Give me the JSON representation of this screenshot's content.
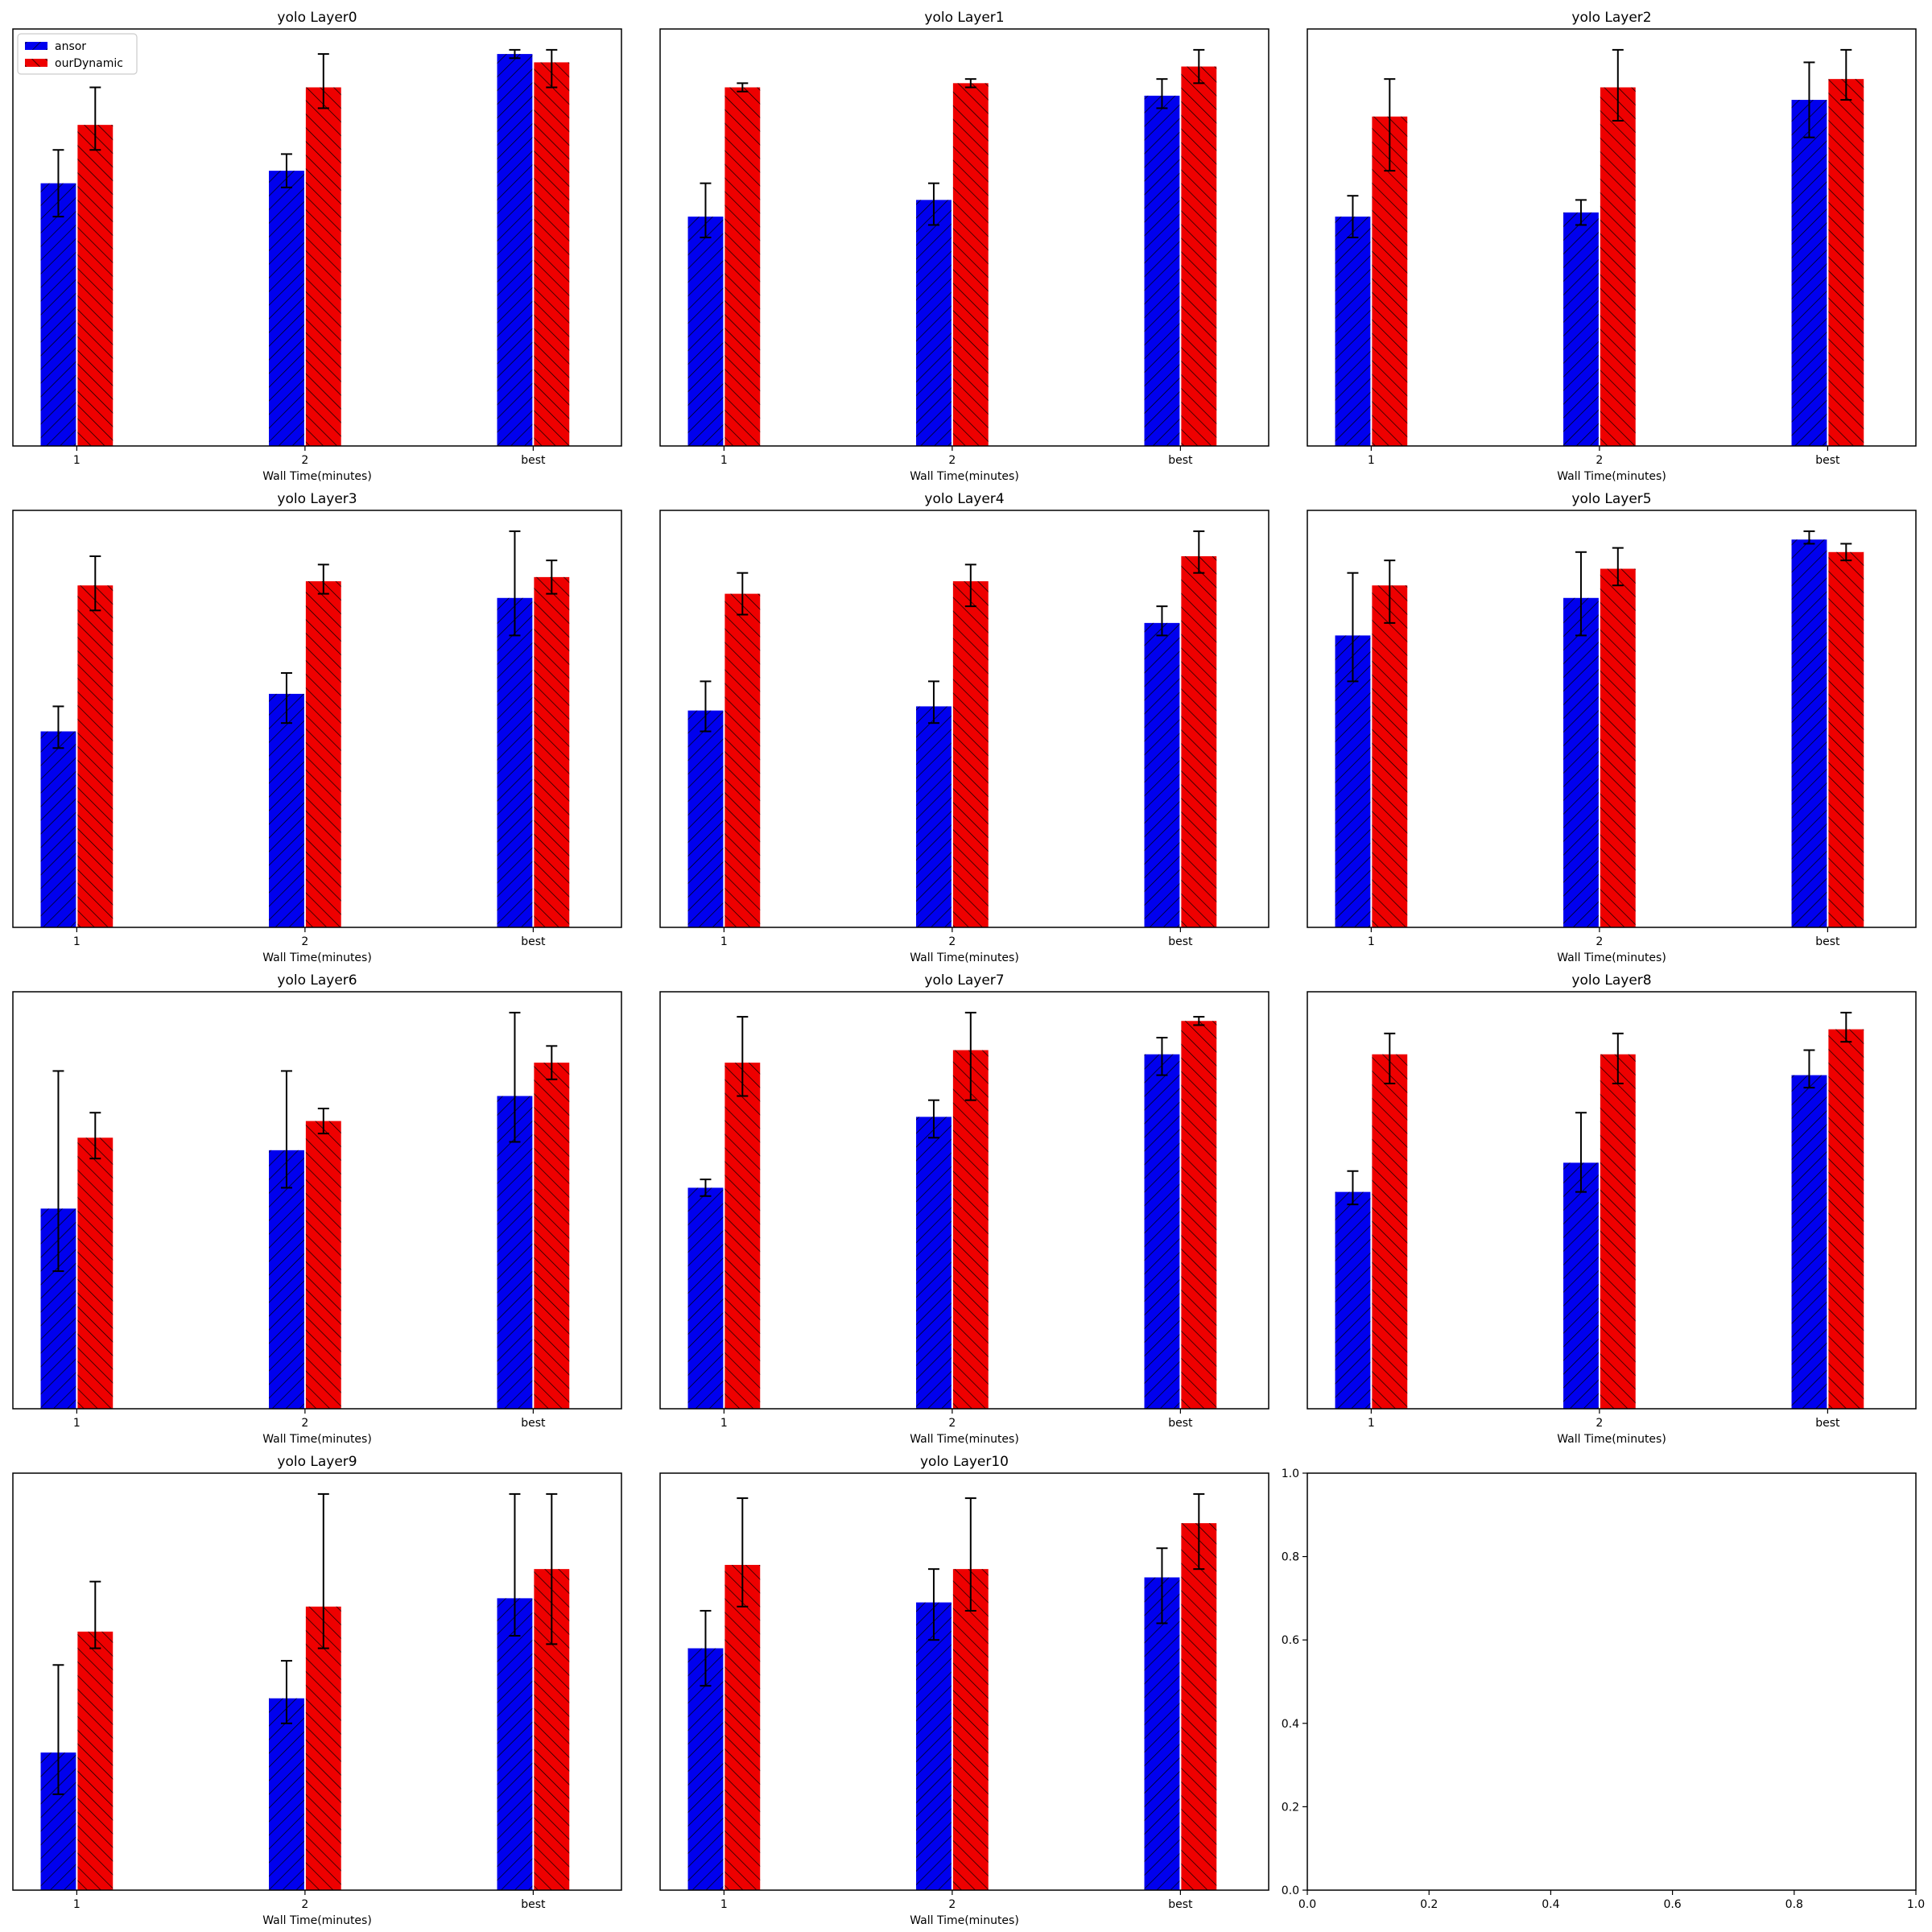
{
  "legend": {
    "entries": [
      {
        "label": "ansor",
        "color": "#0000ee"
      },
      {
        "label": "ourDynamic",
        "color": "#ee0000"
      }
    ],
    "placement": "upper-left-of-first-panel"
  },
  "chart_data": [
    {
      "type": "bar",
      "title": "yolo Layer0",
      "xlabel": "Wall Time(minutes)",
      "categories": [
        "1",
        "2",
        "best"
      ],
      "ylim": [
        0,
        1
      ],
      "show_yticks": false,
      "series": [
        {
          "name": "ansor",
          "values": [
            0.63,
            0.66,
            0.94
          ],
          "errors": [
            [
              0.08,
              0.08
            ],
            [
              0.04,
              0.04
            ],
            [
              0.01,
              0.01
            ]
          ]
        },
        {
          "name": "ourDynamic",
          "values": [
            0.77,
            0.86,
            0.92
          ],
          "errors": [
            [
              0.06,
              0.09
            ],
            [
              0.05,
              0.08
            ],
            [
              0.06,
              0.03
            ]
          ]
        }
      ]
    },
    {
      "type": "bar",
      "title": "yolo Layer1",
      "xlabel": "Wall Time(minutes)",
      "categories": [
        "1",
        "2",
        "best"
      ],
      "ylim": [
        0,
        1
      ],
      "show_yticks": false,
      "series": [
        {
          "name": "ansor",
          "values": [
            0.55,
            0.59,
            0.84
          ],
          "errors": [
            [
              0.05,
              0.08
            ],
            [
              0.06,
              0.04
            ],
            [
              0.03,
              0.04
            ]
          ]
        },
        {
          "name": "ourDynamic",
          "values": [
            0.86,
            0.87,
            0.91
          ],
          "errors": [
            [
              0.01,
              0.01
            ],
            [
              0.01,
              0.01
            ],
            [
              0.04,
              0.04
            ]
          ]
        }
      ]
    },
    {
      "type": "bar",
      "title": "yolo Layer2",
      "xlabel": "Wall Time(minutes)",
      "categories": [
        "1",
        "2",
        "best"
      ],
      "ylim": [
        0,
        1
      ],
      "show_yticks": false,
      "series": [
        {
          "name": "ansor",
          "values": [
            0.55,
            0.56,
            0.83
          ],
          "errors": [
            [
              0.05,
              0.05
            ],
            [
              0.03,
              0.03
            ],
            [
              0.09,
              0.09
            ]
          ]
        },
        {
          "name": "ourDynamic",
          "values": [
            0.79,
            0.86,
            0.88
          ],
          "errors": [
            [
              0.13,
              0.09
            ],
            [
              0.08,
              0.09
            ],
            [
              0.05,
              0.07
            ]
          ]
        }
      ]
    },
    {
      "type": "bar",
      "title": "yolo Layer3",
      "xlabel": "Wall Time(minutes)",
      "categories": [
        "1",
        "2",
        "best"
      ],
      "ylim": [
        0,
        1
      ],
      "show_yticks": false,
      "series": [
        {
          "name": "ansor",
          "values": [
            0.47,
            0.56,
            0.79
          ],
          "errors": [
            [
              0.04,
              0.06
            ],
            [
              0.07,
              0.05
            ],
            [
              0.09,
              0.16
            ]
          ]
        },
        {
          "name": "ourDynamic",
          "values": [
            0.82,
            0.83,
            0.84
          ],
          "errors": [
            [
              0.06,
              0.07
            ],
            [
              0.03,
              0.04
            ],
            [
              0.04,
              0.04
            ]
          ]
        }
      ]
    },
    {
      "type": "bar",
      "title": "yolo Layer4",
      "xlabel": "Wall Time(minutes)",
      "categories": [
        "1",
        "2",
        "best"
      ],
      "ylim": [
        0,
        1
      ],
      "show_yticks": false,
      "series": [
        {
          "name": "ansor",
          "values": [
            0.52,
            0.53,
            0.73
          ],
          "errors": [
            [
              0.05,
              0.07
            ],
            [
              0.04,
              0.06
            ],
            [
              0.03,
              0.04
            ]
          ]
        },
        {
          "name": "ourDynamic",
          "values": [
            0.8,
            0.83,
            0.89
          ],
          "errors": [
            [
              0.05,
              0.05
            ],
            [
              0.06,
              0.04
            ],
            [
              0.04,
              0.06
            ]
          ]
        }
      ]
    },
    {
      "type": "bar",
      "title": "yolo Layer5",
      "xlabel": "Wall Time(minutes)",
      "categories": [
        "1",
        "2",
        "best"
      ],
      "ylim": [
        0,
        1
      ],
      "show_yticks": false,
      "series": [
        {
          "name": "ansor",
          "values": [
            0.7,
            0.79,
            0.93
          ],
          "errors": [
            [
              0.11,
              0.15
            ],
            [
              0.09,
              0.11
            ],
            [
              0.01,
              0.02
            ]
          ]
        },
        {
          "name": "ourDynamic",
          "values": [
            0.82,
            0.86,
            0.9
          ],
          "errors": [
            [
              0.09,
              0.06
            ],
            [
              0.04,
              0.05
            ],
            [
              0.02,
              0.02
            ]
          ]
        }
      ]
    },
    {
      "type": "bar",
      "title": "yolo Layer6",
      "xlabel": "Wall Time(minutes)",
      "categories": [
        "1",
        "2",
        "best"
      ],
      "ylim": [
        0,
        1
      ],
      "show_yticks": false,
      "series": [
        {
          "name": "ansor",
          "values": [
            0.48,
            0.62,
            0.75
          ],
          "errors": [
            [
              0.15,
              0.33
            ],
            [
              0.09,
              0.19
            ],
            [
              0.11,
              0.2
            ]
          ]
        },
        {
          "name": "ourDynamic",
          "values": [
            0.65,
            0.69,
            0.83
          ],
          "errors": [
            [
              0.05,
              0.06
            ],
            [
              0.03,
              0.03
            ],
            [
              0.04,
              0.04
            ]
          ]
        }
      ]
    },
    {
      "type": "bar",
      "title": "yolo Layer7",
      "xlabel": "Wall Time(minutes)",
      "categories": [
        "1",
        "2",
        "best"
      ],
      "ylim": [
        0,
        1
      ],
      "show_yticks": false,
      "series": [
        {
          "name": "ansor",
          "values": [
            0.53,
            0.7,
            0.85
          ],
          "errors": [
            [
              0.02,
              0.02
            ],
            [
              0.05,
              0.04
            ],
            [
              0.05,
              0.04
            ]
          ]
        },
        {
          "name": "ourDynamic",
          "values": [
            0.83,
            0.86,
            0.93
          ],
          "errors": [
            [
              0.08,
              0.11
            ],
            [
              0.12,
              0.09
            ],
            [
              0.01,
              0.01
            ]
          ]
        }
      ]
    },
    {
      "type": "bar",
      "title": "yolo Layer8",
      "xlabel": "Wall Time(minutes)",
      "categories": [
        "1",
        "2",
        "best"
      ],
      "ylim": [
        0,
        1
      ],
      "show_yticks": false,
      "series": [
        {
          "name": "ansor",
          "values": [
            0.52,
            0.59,
            0.8
          ],
          "errors": [
            [
              0.03,
              0.05
            ],
            [
              0.07,
              0.12
            ],
            [
              0.03,
              0.06
            ]
          ]
        },
        {
          "name": "ourDynamic",
          "values": [
            0.85,
            0.85,
            0.91
          ],
          "errors": [
            [
              0.07,
              0.05
            ],
            [
              0.07,
              0.05
            ],
            [
              0.03,
              0.04
            ]
          ]
        }
      ]
    },
    {
      "type": "bar",
      "title": "yolo Layer9",
      "xlabel": "Wall Time(minutes)",
      "categories": [
        "1",
        "2",
        "best"
      ],
      "ylim": [
        0,
        1
      ],
      "show_yticks": false,
      "series": [
        {
          "name": "ansor",
          "values": [
            0.33,
            0.46,
            0.7
          ],
          "errors": [
            [
              0.1,
              0.21
            ],
            [
              0.06,
              0.09
            ],
            [
              0.09,
              0.25
            ]
          ]
        },
        {
          "name": "ourDynamic",
          "values": [
            0.62,
            0.68,
            0.77
          ],
          "errors": [
            [
              0.04,
              0.12
            ],
            [
              0.1,
              0.27
            ],
            [
              0.18,
              0.18
            ]
          ]
        }
      ]
    },
    {
      "type": "bar",
      "title": "yolo Layer10",
      "xlabel": "Wall Time(minutes)",
      "categories": [
        "1",
        "2",
        "best"
      ],
      "ylim": [
        0,
        1
      ],
      "show_yticks": false,
      "series": [
        {
          "name": "ansor",
          "values": [
            0.58,
            0.69,
            0.75
          ],
          "errors": [
            [
              0.09,
              0.09
            ],
            [
              0.09,
              0.08
            ],
            [
              0.11,
              0.07
            ]
          ]
        },
        {
          "name": "ourDynamic",
          "values": [
            0.78,
            0.77,
            0.88
          ],
          "errors": [
            [
              0.1,
              0.16
            ],
            [
              0.1,
              0.17
            ],
            [
              0.11,
              0.07
            ]
          ]
        }
      ]
    },
    {
      "type": "empty",
      "title": "",
      "xlabel": "",
      "xlim": [
        0,
        1
      ],
      "ylim": [
        0,
        1
      ],
      "xticks": [
        "0.0",
        "0.2",
        "0.4",
        "0.6",
        "0.8",
        "1.0"
      ],
      "yticks": [
        "0.0",
        "0.2",
        "0.4",
        "0.6",
        "0.8",
        "1.0"
      ]
    }
  ]
}
